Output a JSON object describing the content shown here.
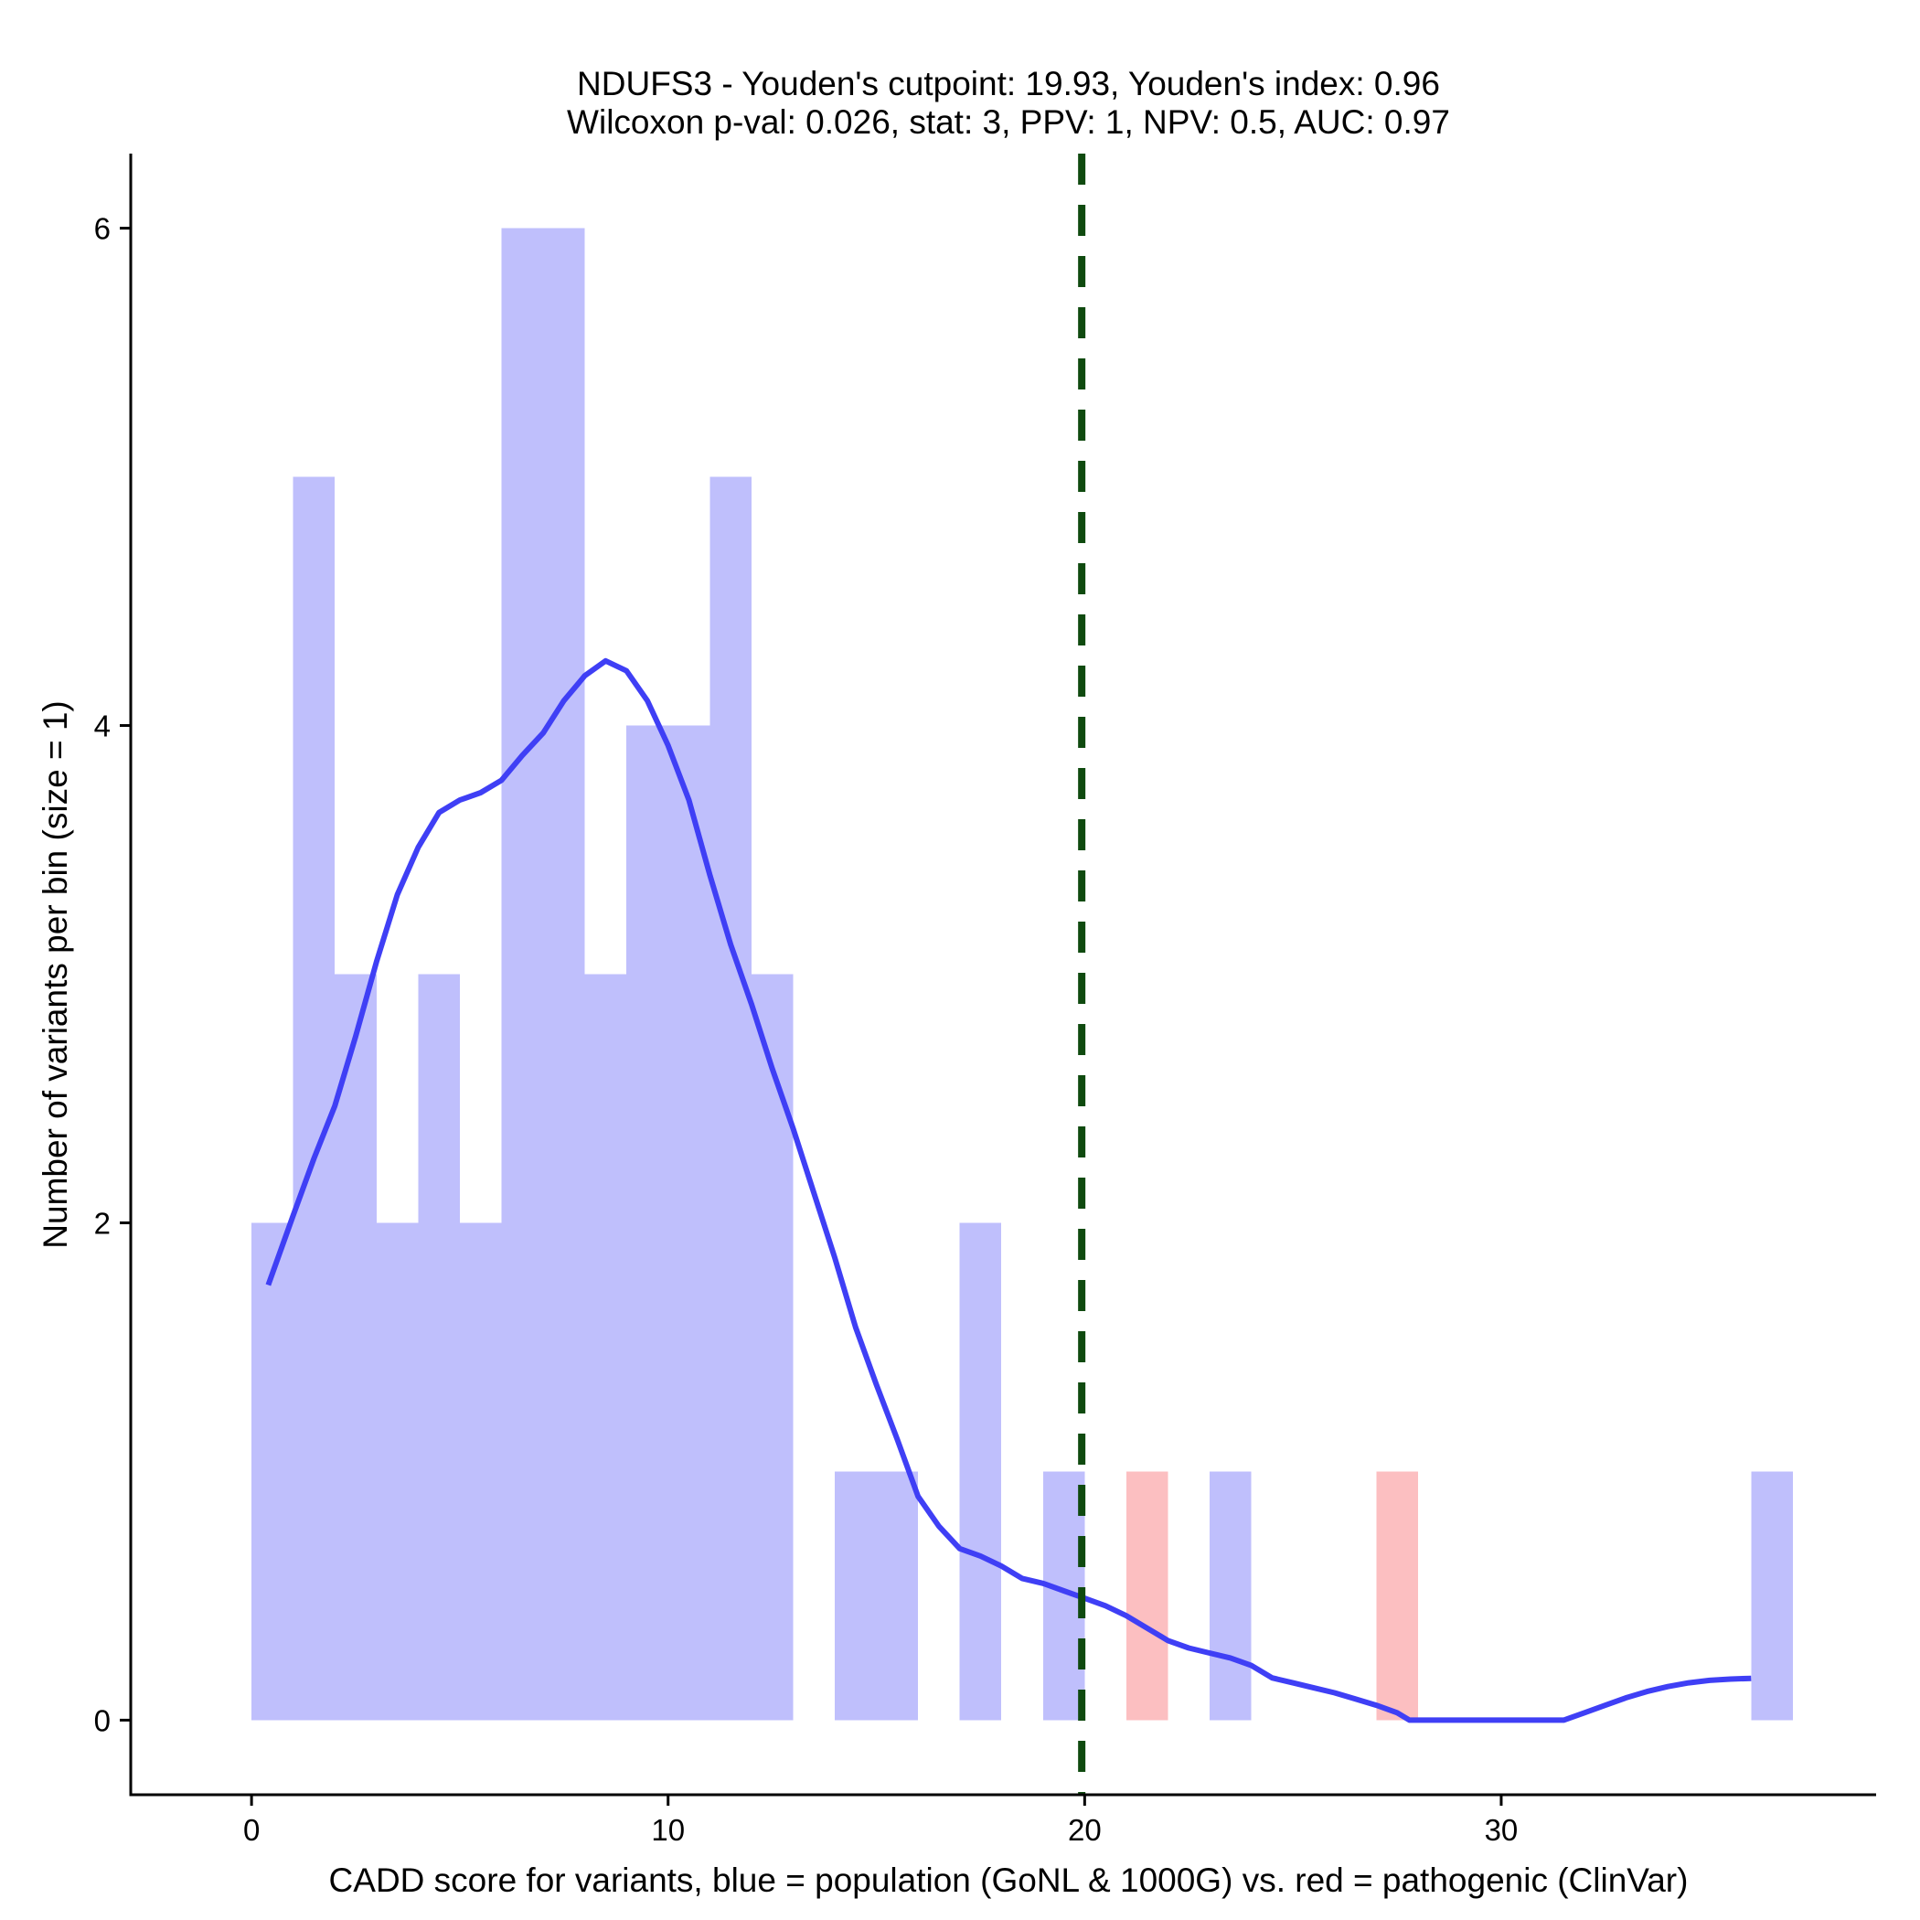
{
  "chart_data": {
    "type": "bar",
    "title_line1": "NDUFS3 - Youden's cutpoint: 19.93, Youden's index: 0.96",
    "title_line2": "Wilcoxon p-val: 0.026, stat: 3, PPV: 1, NPV: 0.5, AUC: 0.97",
    "xlabel": "CADD score for variants, blue = population (GoNL & 1000G) vs. red = pathogenic (ClinVar)",
    "ylabel": "Number of variants per bin (size = 1)",
    "xlim": [
      -2.9,
      39
    ],
    "ylim": [
      -0.3,
      6.3
    ],
    "xticks": [
      0,
      10,
      20,
      30
    ],
    "yticks": [
      0,
      2,
      4,
      6
    ],
    "bin_size": 1,
    "grid": false,
    "series": [
      {
        "color": "#bfbffc",
        "bins": [
          {
            "x": 0,
            "count": 2
          },
          {
            "x": 1,
            "count": 5
          },
          {
            "x": 2,
            "count": 3
          },
          {
            "x": 3,
            "count": 2
          },
          {
            "x": 4,
            "count": 3
          },
          {
            "x": 5,
            "count": 2
          },
          {
            "x": 6,
            "count": 6
          },
          {
            "x": 7,
            "count": 6
          },
          {
            "x": 8,
            "count": 3
          },
          {
            "x": 9,
            "count": 4
          },
          {
            "x": 10,
            "count": 4
          },
          {
            "x": 11,
            "count": 5
          },
          {
            "x": 12,
            "count": 3
          },
          {
            "x": 14,
            "count": 1
          },
          {
            "x": 15,
            "count": 1
          },
          {
            "x": 17,
            "count": 2
          },
          {
            "x": 19,
            "count": 1
          },
          {
            "x": 23,
            "count": 1
          },
          {
            "x": 36,
            "count": 1
          }
        ]
      },
      {
        "color": "#fcbfc1",
        "bins": [
          {
            "x": 21,
            "count": 1
          },
          {
            "x": 27,
            "count": 1
          }
        ]
      }
    ],
    "density_curve": {
      "color": "#3f3ff5",
      "points": [
        [
          0.4,
          1.75
        ],
        [
          1.0,
          2.03
        ],
        [
          1.5,
          2.26
        ],
        [
          2.0,
          2.47
        ],
        [
          2.5,
          2.75
        ],
        [
          3.0,
          3.05
        ],
        [
          3.5,
          3.32
        ],
        [
          4.0,
          3.51
        ],
        [
          4.5,
          3.65
        ],
        [
          5.0,
          3.7
        ],
        [
          5.5,
          3.73
        ],
        [
          6.0,
          3.78
        ],
        [
          6.5,
          3.88
        ],
        [
          7.0,
          3.97
        ],
        [
          7.5,
          4.1
        ],
        [
          8.0,
          4.2
        ],
        [
          8.5,
          4.26
        ],
        [
          9.0,
          4.22
        ],
        [
          9.5,
          4.1
        ],
        [
          10.0,
          3.92
        ],
        [
          10.5,
          3.7
        ],
        [
          11.0,
          3.4
        ],
        [
          11.5,
          3.12
        ],
        [
          12.0,
          2.88
        ],
        [
          12.5,
          2.62
        ],
        [
          13.0,
          2.38
        ],
        [
          13.5,
          2.12
        ],
        [
          14.0,
          1.86
        ],
        [
          14.5,
          1.58
        ],
        [
          15.0,
          1.35
        ],
        [
          15.5,
          1.13
        ],
        [
          16.0,
          0.9
        ],
        [
          16.5,
          0.78
        ],
        [
          17.0,
          0.69
        ],
        [
          17.5,
          0.66
        ],
        [
          18.0,
          0.62
        ],
        [
          18.5,
          0.57
        ],
        [
          19.0,
          0.55
        ],
        [
          19.5,
          0.52
        ],
        [
          20.0,
          0.49
        ],
        [
          20.5,
          0.46
        ],
        [
          21.0,
          0.42
        ],
        [
          21.5,
          0.37
        ],
        [
          22.0,
          0.32
        ],
        [
          22.5,
          0.29
        ],
        [
          23.0,
          0.27
        ],
        [
          23.5,
          0.25
        ],
        [
          24.0,
          0.22
        ],
        [
          24.5,
          0.17
        ],
        [
          25.0,
          0.15
        ],
        [
          25.5,
          0.13
        ],
        [
          26.0,
          0.11
        ],
        [
          26.5,
          0.085
        ],
        [
          27.0,
          0.06
        ],
        [
          27.5,
          0.03
        ],
        [
          27.8,
          0.0
        ],
        [
          28.5,
          0.0
        ],
        [
          29.5,
          0.0
        ],
        [
          30.5,
          0.0
        ],
        [
          31.5,
          0.0
        ],
        [
          32.0,
          0.03
        ],
        [
          32.5,
          0.06
        ],
        [
          33.0,
          0.09
        ],
        [
          33.5,
          0.115
        ],
        [
          34.0,
          0.135
        ],
        [
          34.5,
          0.15
        ],
        [
          35.0,
          0.16
        ],
        [
          35.5,
          0.165
        ],
        [
          36.0,
          0.168
        ]
      ]
    },
    "cutpoint": {
      "x": 19.93,
      "color": "#0f4a0f"
    }
  }
}
